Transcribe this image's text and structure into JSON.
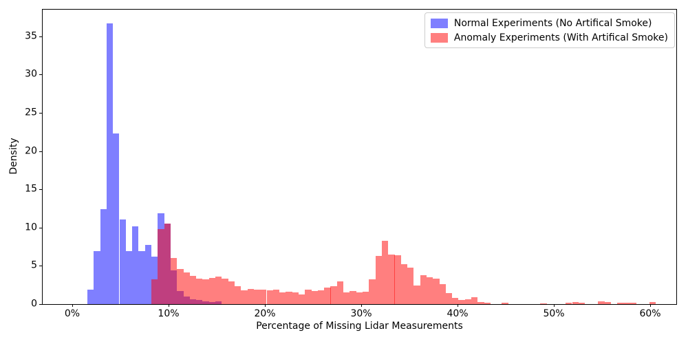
{
  "chart_data": {
    "type": "bar",
    "subtype": "overlaid-histogram",
    "title": "",
    "xlabel": "Percentage of Missing Lidar Measurements",
    "ylabel": "Density",
    "x_ticks": [
      {
        "label": "0%",
        "value": 0
      },
      {
        "label": "10%",
        "value": 10
      },
      {
        "label": "20%",
        "value": 20
      },
      {
        "label": "30%",
        "value": 30
      },
      {
        "label": "40%",
        "value": 40
      },
      {
        "label": "50%",
        "value": 50
      },
      {
        "label": "60%",
        "value": 60
      }
    ],
    "y_ticks": [
      0,
      5,
      10,
      15,
      20,
      25,
      30,
      35
    ],
    "xlim": [
      -3.07,
      62.71
    ],
    "ylim": [
      0,
      38.5
    ],
    "grid": false,
    "bin_width_pct": 0.664,
    "colors": {
      "normal_fill": "rgba(0,0,255,0.5)",
      "anomaly_fill": "rgba(255,0,0,0.5)",
      "normal_hex_on_white": "#8080ff",
      "anomaly_hex_on_white": "#ff8080",
      "overlap_hex": "#bf4080"
    },
    "legend": {
      "position": "upper right",
      "entries": [
        {
          "label": "Normal Experiments (No Artifical Smoke)",
          "color": "rgba(0,0,255,0.5)"
        },
        {
          "label": "Anomaly Experiments (With Artifical Smoke)",
          "color": "rgba(255,0,0,0.5)"
        }
      ]
    },
    "series": [
      {
        "name": "Normal Experiments (No Artifical Smoke)",
        "color": "rgba(0,0,255,0.5)",
        "bins": [
          {
            "x": 1.57,
            "h": 1.9
          },
          {
            "x": 2.24,
            "h": 6.9
          },
          {
            "x": 2.9,
            "h": 12.4
          },
          {
            "x": 3.57,
            "h": 36.7
          },
          {
            "x": 4.23,
            "h": 22.3
          },
          {
            "x": 4.9,
            "h": 11.1
          },
          {
            "x": 5.56,
            "h": 6.9
          },
          {
            "x": 6.23,
            "h": 10.2
          },
          {
            "x": 6.89,
            "h": 6.9
          },
          {
            "x": 7.56,
            "h": 7.7
          },
          {
            "x": 8.22,
            "h": 6.2
          },
          {
            "x": 8.89,
            "h": 11.9
          },
          {
            "x": 9.55,
            "h": 10.5
          },
          {
            "x": 10.21,
            "h": 4.4
          },
          {
            "x": 10.88,
            "h": 1.7
          },
          {
            "x": 11.54,
            "h": 1.0
          },
          {
            "x": 12.21,
            "h": 0.6
          },
          {
            "x": 12.87,
            "h": 0.5
          },
          {
            "x": 13.53,
            "h": 0.4
          },
          {
            "x": 14.2,
            "h": 0.3
          },
          {
            "x": 14.86,
            "h": 0.35
          }
        ]
      },
      {
        "name": "Anomaly Experiments (With Artifical Smoke)",
        "color": "rgba(255,0,0,0.5)",
        "bins": [
          {
            "x": 8.22,
            "h": 3.2
          },
          {
            "x": 8.89,
            "h": 9.8
          },
          {
            "x": 9.55,
            "h": 10.5
          },
          {
            "x": 10.21,
            "h": 6.0
          },
          {
            "x": 10.88,
            "h": 4.6
          },
          {
            "x": 11.54,
            "h": 4.1
          },
          {
            "x": 12.21,
            "h": 3.7
          },
          {
            "x": 12.87,
            "h": 3.3
          },
          {
            "x": 13.53,
            "h": 3.2
          },
          {
            "x": 14.2,
            "h": 3.4
          },
          {
            "x": 14.86,
            "h": 3.6
          },
          {
            "x": 15.53,
            "h": 3.3
          },
          {
            "x": 16.19,
            "h": 3.0
          },
          {
            "x": 16.86,
            "h": 2.3
          },
          {
            "x": 17.52,
            "h": 1.8
          },
          {
            "x": 18.19,
            "h": 2.0
          },
          {
            "x": 18.85,
            "h": 1.9
          },
          {
            "x": 19.51,
            "h": 1.9
          },
          {
            "x": 20.18,
            "h": 1.8
          },
          {
            "x": 20.84,
            "h": 1.9
          },
          {
            "x": 21.51,
            "h": 1.5
          },
          {
            "x": 22.17,
            "h": 1.6
          },
          {
            "x": 22.84,
            "h": 1.5
          },
          {
            "x": 23.5,
            "h": 1.3
          },
          {
            "x": 24.16,
            "h": 1.9
          },
          {
            "x": 24.83,
            "h": 1.7
          },
          {
            "x": 25.49,
            "h": 1.8
          },
          {
            "x": 26.16,
            "h": 2.2
          },
          {
            "x": 26.82,
            "h": 2.3
          },
          {
            "x": 27.49,
            "h": 3.0
          },
          {
            "x": 28.15,
            "h": 1.5
          },
          {
            "x": 28.81,
            "h": 1.7
          },
          {
            "x": 29.48,
            "h": 1.55
          },
          {
            "x": 30.14,
            "h": 1.6
          },
          {
            "x": 30.81,
            "h": 3.25
          },
          {
            "x": 31.47,
            "h": 6.3
          },
          {
            "x": 32.13,
            "h": 8.3
          },
          {
            "x": 32.8,
            "h": 6.5
          },
          {
            "x": 33.46,
            "h": 6.4
          },
          {
            "x": 34.13,
            "h": 5.25
          },
          {
            "x": 34.79,
            "h": 4.75
          },
          {
            "x": 35.46,
            "h": 2.4
          },
          {
            "x": 36.12,
            "h": 3.8
          },
          {
            "x": 36.78,
            "h": 3.5
          },
          {
            "x": 37.45,
            "h": 3.3
          },
          {
            "x": 38.11,
            "h": 2.6
          },
          {
            "x": 38.78,
            "h": 1.4
          },
          {
            "x": 39.44,
            "h": 0.85
          },
          {
            "x": 40.1,
            "h": 0.5
          },
          {
            "x": 40.77,
            "h": 0.65
          },
          {
            "x": 41.43,
            "h": 0.9
          },
          {
            "x": 42.1,
            "h": 0.3
          },
          {
            "x": 42.76,
            "h": 0.2
          },
          {
            "x": 44.6,
            "h": 0.15
          },
          {
            "x": 48.6,
            "h": 0.1
          },
          {
            "x": 51.2,
            "h": 0.2
          },
          {
            "x": 51.9,
            "h": 0.25
          },
          {
            "x": 52.55,
            "h": 0.2
          },
          {
            "x": 54.6,
            "h": 0.4
          },
          {
            "x": 55.25,
            "h": 0.3
          },
          {
            "x": 56.6,
            "h": 0.15
          },
          {
            "x": 57.25,
            "h": 0.2
          },
          {
            "x": 57.9,
            "h": 0.15
          },
          {
            "x": 59.9,
            "h": 0.25
          }
        ]
      }
    ]
  }
}
